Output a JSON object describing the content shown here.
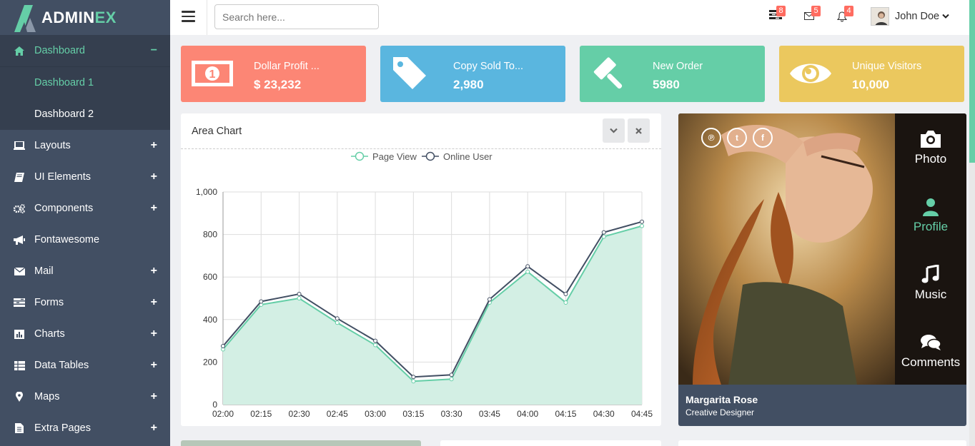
{
  "brand": {
    "name_main": "ADMIN",
    "name_accent": "EX"
  },
  "sidebar": {
    "items": [
      {
        "label": "Dashboard",
        "icon": "home-icon",
        "toggle": "−",
        "active": true
      },
      {
        "label": "Layouts",
        "icon": "laptop-icon",
        "toggle": "+"
      },
      {
        "label": "UI Elements",
        "icon": "book-icon",
        "toggle": "+"
      },
      {
        "label": "Components",
        "icon": "cogs-icon",
        "toggle": "+"
      },
      {
        "label": "Fontawesome",
        "icon": "bullhorn-icon",
        "toggle": ""
      },
      {
        "label": "Mail",
        "icon": "envelope-icon",
        "toggle": "+"
      },
      {
        "label": "Forms",
        "icon": "tasks-icon",
        "toggle": "+"
      },
      {
        "label": "Charts",
        "icon": "bar-chart-icon",
        "toggle": "+"
      },
      {
        "label": "Data Tables",
        "icon": "table-icon",
        "toggle": "+"
      },
      {
        "label": "Maps",
        "icon": "map-marker-icon",
        "toggle": "+"
      },
      {
        "label": "Extra Pages",
        "icon": "file-icon",
        "toggle": "+"
      }
    ],
    "submenu": [
      {
        "label": "Dashboard 1",
        "current": true
      },
      {
        "label": "Dashboard 2",
        "current": false
      }
    ]
  },
  "header": {
    "search_placeholder": "Search here...",
    "badges": {
      "tasks": "8",
      "mail": "5",
      "notifications": "4"
    },
    "user_name": "John Doe"
  },
  "stats": [
    {
      "label": "Dollar Profit ...",
      "value": "$ 23,232",
      "color": "#fc8675",
      "icon": "money-icon"
    },
    {
      "label": "Copy Sold To...",
      "value": "2,980",
      "color": "#5ab6df",
      "icon": "tag-icon"
    },
    {
      "label": "New Order",
      "value": "5980",
      "color": "#65cea7",
      "icon": "gavel-icon"
    },
    {
      "label": "Unique Visitors",
      "value": "10,000",
      "color": "#ebc85e",
      "icon": "eye-icon"
    }
  ],
  "area_chart": {
    "title": "Area Chart"
  },
  "chart_data": {
    "type": "area",
    "x": [
      "02:00",
      "02:15",
      "02:30",
      "02:45",
      "03:00",
      "03:15",
      "03:30",
      "03:45",
      "04:00",
      "04:15",
      "04:30",
      "04:45"
    ],
    "series": [
      {
        "name": "Page View",
        "values": [
          260,
          470,
          500,
          385,
          280,
          110,
          120,
          480,
          625,
          480,
          790,
          840
        ],
        "color": "#65cea7"
      },
      {
        "name": "Online User",
        "values": [
          275,
          485,
          520,
          405,
          300,
          130,
          140,
          495,
          650,
          520,
          810,
          860
        ],
        "color": "#424f63"
      }
    ],
    "yticks": [
      "0",
      "200",
      "400",
      "600",
      "800",
      "1,000"
    ],
    "ylim": [
      0,
      1000
    ],
    "grid": true,
    "legend": "top-center"
  },
  "profile": {
    "name": "Margarita Rose",
    "role": "Creative Designer",
    "tabs": [
      {
        "label": "Photo",
        "icon": "camera-icon"
      },
      {
        "label": "Profile",
        "icon": "user-icon",
        "active": true
      },
      {
        "label": "Music",
        "icon": "music-icon"
      },
      {
        "label": "Comments",
        "icon": "comments-icon"
      }
    ],
    "social": [
      {
        "glyph": "℗",
        "icon": "pinterest-icon"
      },
      {
        "glyph": "t",
        "icon": "twitter-icon"
      },
      {
        "glyph": "f",
        "icon": "facebook-icon"
      }
    ]
  }
}
